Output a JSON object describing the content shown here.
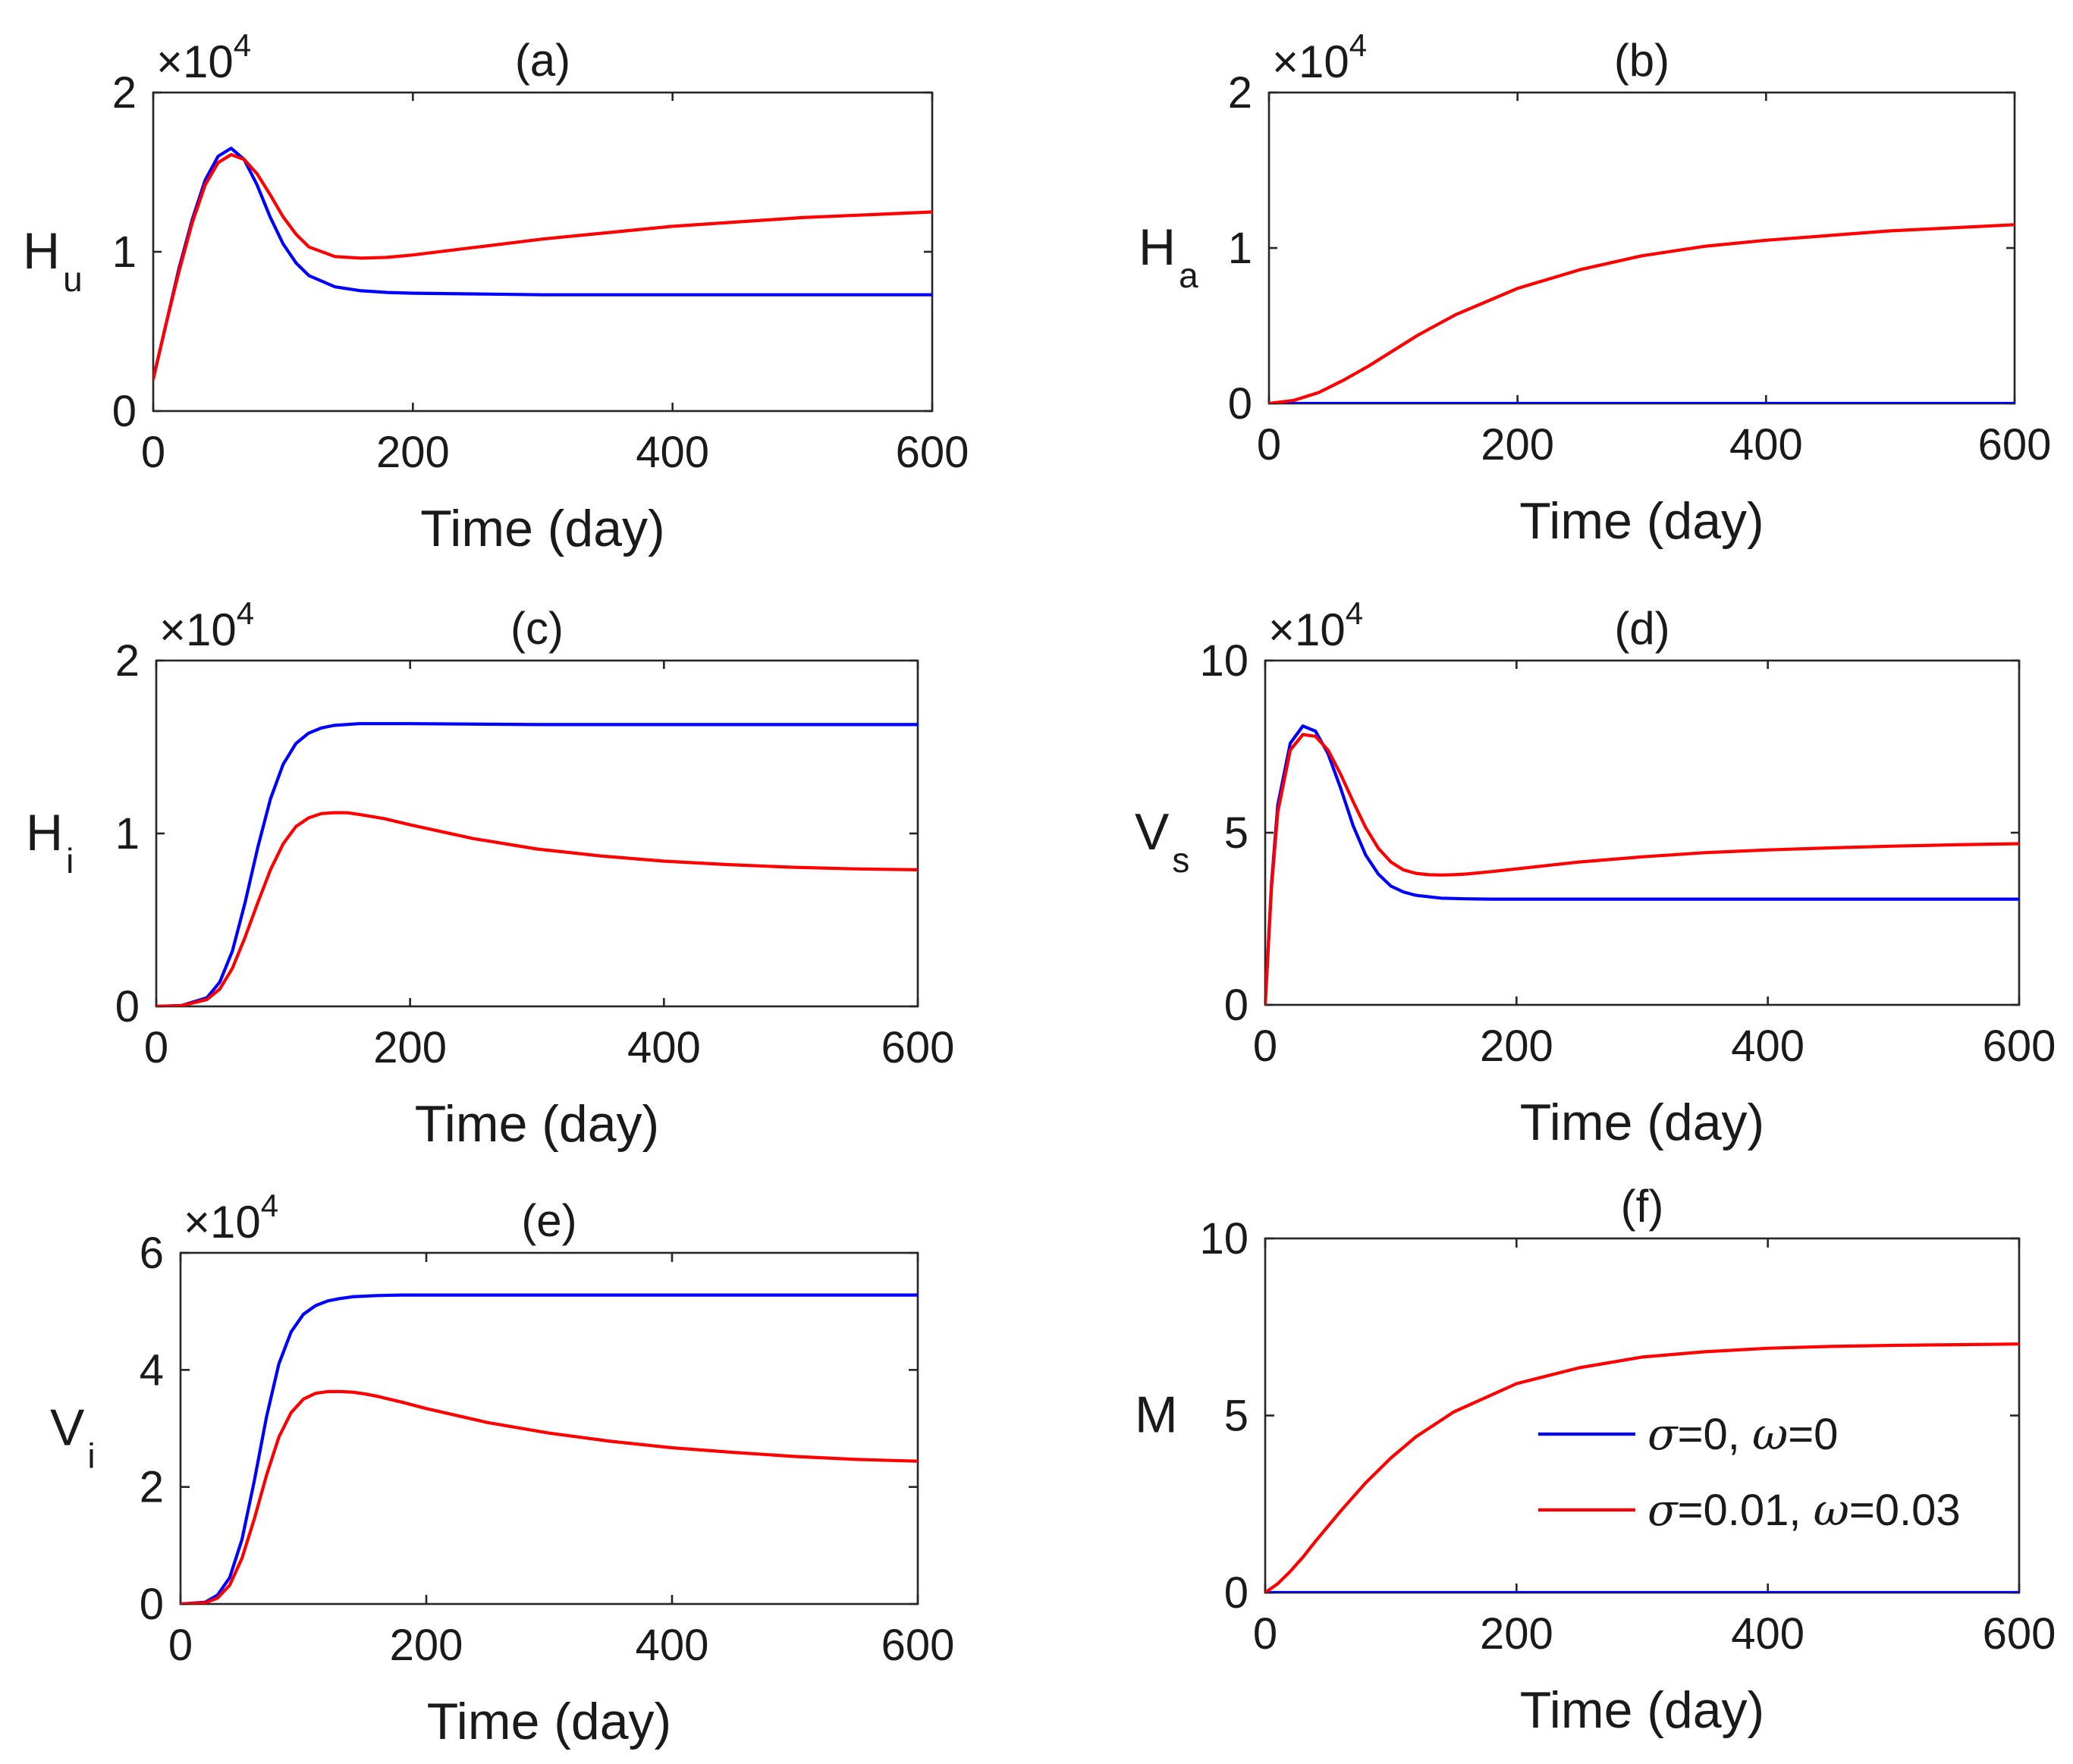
{
  "colors": {
    "series_blue": "#0000ff",
    "series_red": "#ff0000",
    "axes": "#262626"
  },
  "legend": {
    "entries": [
      {
        "series": "blue",
        "sym1": "σ",
        "text1": "=0, ",
        "sym2": "ω",
        "text2": "=0"
      },
      {
        "series": "red",
        "sym1": "σ",
        "text1": "=0.01, ",
        "sym2": "ω",
        "text2": "=0.03"
      }
    ]
  },
  "chart_data": [
    {
      "id": "a",
      "type": "line",
      "title": "(a)",
      "ylabel": "H",
      "ylabel_sub": "u",
      "xlabel": "Time (day)",
      "y_exponent": {
        "base": "×10",
        "power": "4"
      },
      "xlim": [
        0,
        600
      ],
      "ylim": [
        0,
        2
      ],
      "xticks": [
        0,
        200,
        400,
        600
      ],
      "xtick_labels": [
        "0",
        "200",
        "400",
        "600"
      ],
      "yticks": [
        0,
        1,
        2
      ],
      "ytick_labels": [
        "0",
        "1",
        "2"
      ],
      "series": [
        {
          "name": "σ=0, ω=0",
          "color": "blue",
          "x": [
            0,
            10,
            20,
            30,
            40,
            50,
            60,
            70,
            80,
            90,
            100,
            110,
            120,
            140,
            160,
            180,
            200,
            250,
            300,
            400,
            500,
            600
          ],
          "y": [
            0.2,
            0.55,
            0.9,
            1.2,
            1.45,
            1.6,
            1.65,
            1.58,
            1.42,
            1.22,
            1.05,
            0.93,
            0.85,
            0.78,
            0.755,
            0.745,
            0.74,
            0.735,
            0.73,
            0.73,
            0.73,
            0.73
          ]
        },
        {
          "name": "σ=0.01, ω=0.03",
          "color": "red",
          "x": [
            0,
            10,
            20,
            30,
            40,
            50,
            60,
            70,
            80,
            90,
            100,
            110,
            120,
            140,
            160,
            180,
            200,
            250,
            300,
            400,
            500,
            600
          ],
          "y": [
            0.2,
            0.55,
            0.88,
            1.18,
            1.42,
            1.56,
            1.61,
            1.58,
            1.49,
            1.36,
            1.22,
            1.11,
            1.03,
            0.97,
            0.96,
            0.965,
            0.98,
            1.03,
            1.08,
            1.16,
            1.215,
            1.25
          ]
        }
      ]
    },
    {
      "id": "b",
      "type": "line",
      "title": "(b)",
      "ylabel": "H",
      "ylabel_sub": "a",
      "xlabel": "Time (day)",
      "y_exponent": {
        "base": "×10",
        "power": "4"
      },
      "xlim": [
        0,
        600
      ],
      "ylim": [
        0,
        2
      ],
      "xticks": [
        0,
        200,
        400,
        600
      ],
      "xtick_labels": [
        "0",
        "200",
        "400",
        "600"
      ],
      "yticks": [
        0,
        1,
        2
      ],
      "ytick_labels": [
        "0",
        "1",
        "2"
      ],
      "series": [
        {
          "name": "σ=0, ω=0",
          "color": "blue",
          "x": [
            0,
            600
          ],
          "y": [
            0,
            0
          ]
        },
        {
          "name": "σ=0.01, ω=0.03",
          "color": "red",
          "x": [
            0,
            20,
            40,
            60,
            80,
            100,
            120,
            150,
            200,
            250,
            300,
            350,
            400,
            450,
            500,
            550,
            600
          ],
          "y": [
            0,
            0.02,
            0.07,
            0.15,
            0.24,
            0.34,
            0.44,
            0.57,
            0.74,
            0.86,
            0.95,
            1.01,
            1.05,
            1.08,
            1.11,
            1.13,
            1.15
          ]
        }
      ]
    },
    {
      "id": "c",
      "type": "line",
      "title": "(c)",
      "ylabel": "H",
      "ylabel_sub": "i",
      "xlabel": "Time (day)",
      "y_exponent": {
        "base": "×10",
        "power": "4"
      },
      "xlim": [
        0,
        600
      ],
      "ylim": [
        0,
        2
      ],
      "xticks": [
        0,
        200,
        400,
        600
      ],
      "xtick_labels": [
        "0",
        "200",
        "400",
        "600"
      ],
      "yticks": [
        0,
        1,
        2
      ],
      "ytick_labels": [
        "0",
        "1",
        "2"
      ],
      "series": [
        {
          "name": "σ=0, ω=0",
          "color": "blue",
          "x": [
            0,
            20,
            40,
            50,
            60,
            70,
            80,
            90,
            100,
            110,
            120,
            130,
            140,
            160,
            180,
            200,
            300,
            400,
            500,
            600
          ],
          "y": [
            0,
            0.005,
            0.05,
            0.14,
            0.32,
            0.6,
            0.92,
            1.2,
            1.4,
            1.52,
            1.58,
            1.61,
            1.625,
            1.635,
            1.635,
            1.635,
            1.63,
            1.63,
            1.63,
            1.63
          ]
        },
        {
          "name": "σ=0.01, ω=0.03",
          "color": "red",
          "x": [
            0,
            20,
            40,
            50,
            60,
            70,
            80,
            90,
            100,
            110,
            120,
            130,
            140,
            150,
            160,
            180,
            200,
            250,
            300,
            350,
            400,
            450,
            500,
            550,
            600
          ],
          "y": [
            0,
            0.004,
            0.04,
            0.1,
            0.22,
            0.4,
            0.6,
            0.79,
            0.94,
            1.04,
            1.09,
            1.115,
            1.12,
            1.12,
            1.11,
            1.085,
            1.05,
            0.97,
            0.91,
            0.87,
            0.84,
            0.82,
            0.805,
            0.795,
            0.79
          ]
        }
      ]
    },
    {
      "id": "d",
      "type": "line",
      "title": "(d)",
      "ylabel": "V",
      "ylabel_sub": "s",
      "xlabel": "Time (day)",
      "y_exponent": {
        "base": "×10",
        "power": "4"
      },
      "xlim": [
        0,
        600
      ],
      "ylim": [
        0,
        10
      ],
      "xticks": [
        0,
        200,
        400,
        600
      ],
      "xtick_labels": [
        "0",
        "200",
        "400",
        "600"
      ],
      "yticks": [
        0,
        5,
        10
      ],
      "ytick_labels": [
        "0",
        "5",
        "10"
      ],
      "series": [
        {
          "name": "σ=0, ω=0",
          "color": "blue",
          "x": [
            0,
            5,
            10,
            20,
            30,
            40,
            50,
            60,
            70,
            80,
            90,
            100,
            110,
            120,
            140,
            160,
            180,
            200,
            300,
            400,
            500,
            600
          ],
          "y": [
            0,
            3.5,
            5.8,
            7.6,
            8.1,
            7.95,
            7.3,
            6.3,
            5.2,
            4.35,
            3.8,
            3.45,
            3.28,
            3.18,
            3.1,
            3.08,
            3.07,
            3.07,
            3.07,
            3.07,
            3.07,
            3.07
          ]
        },
        {
          "name": "σ=0.01, ω=0.03",
          "color": "red",
          "x": [
            0,
            5,
            10,
            20,
            30,
            40,
            50,
            60,
            70,
            80,
            90,
            100,
            110,
            120,
            130,
            140,
            150,
            160,
            180,
            200,
            250,
            300,
            350,
            400,
            450,
            500,
            550,
            600
          ],
          "y": [
            0,
            3.4,
            5.6,
            7.4,
            7.85,
            7.8,
            7.4,
            6.7,
            5.9,
            5.15,
            4.55,
            4.15,
            3.92,
            3.82,
            3.78,
            3.77,
            3.78,
            3.8,
            3.87,
            3.95,
            4.15,
            4.3,
            4.42,
            4.5,
            4.56,
            4.61,
            4.65,
            4.68
          ]
        }
      ]
    },
    {
      "id": "e",
      "type": "line",
      "title": "(e)",
      "ylabel": "V",
      "ylabel_sub": "i",
      "xlabel": "Time (day)",
      "y_exponent": {
        "base": "×10",
        "power": "4"
      },
      "xlim": [
        0,
        600
      ],
      "ylim": [
        0,
        6
      ],
      "xticks": [
        0,
        200,
        400,
        600
      ],
      "xtick_labels": [
        "0",
        "200",
        "400",
        "600"
      ],
      "yticks": [
        0,
        2,
        4,
        6
      ],
      "ytick_labels": [
        "0",
        "2",
        "4",
        "6"
      ],
      "series": [
        {
          "name": "σ=0, ω=0",
          "color": "blue",
          "x": [
            0,
            20,
            30,
            40,
            50,
            60,
            70,
            80,
            90,
            100,
            110,
            120,
            130,
            140,
            160,
            180,
            200,
            300,
            400,
            500,
            600
          ],
          "y": [
            0,
            0.03,
            0.15,
            0.45,
            1.1,
            2.1,
            3.2,
            4.1,
            4.65,
            4.95,
            5.1,
            5.18,
            5.22,
            5.25,
            5.27,
            5.28,
            5.28,
            5.28,
            5.28,
            5.28,
            5.28
          ]
        },
        {
          "name": "σ=0.01, ω=0.03",
          "color": "red",
          "x": [
            0,
            20,
            30,
            40,
            50,
            60,
            70,
            80,
            90,
            100,
            110,
            120,
            130,
            140,
            150,
            160,
            180,
            200,
            250,
            300,
            350,
            400,
            450,
            500,
            550,
            600
          ],
          "y": [
            0,
            0.02,
            0.1,
            0.32,
            0.78,
            1.45,
            2.2,
            2.85,
            3.27,
            3.5,
            3.6,
            3.63,
            3.63,
            3.62,
            3.59,
            3.55,
            3.45,
            3.34,
            3.1,
            2.92,
            2.78,
            2.67,
            2.59,
            2.52,
            2.47,
            2.44
          ]
        }
      ]
    },
    {
      "id": "f",
      "type": "line",
      "title": "(f)",
      "ylabel": "M",
      "ylabel_sub": "",
      "xlabel": "Time (day)",
      "xlim": [
        0,
        600
      ],
      "ylim": [
        0,
        10
      ],
      "xticks": [
        0,
        200,
        400,
        600
      ],
      "xtick_labels": [
        "0",
        "200",
        "400",
        "600"
      ],
      "yticks": [
        0,
        5,
        10
      ],
      "ytick_labels": [
        "0",
        "5",
        "10"
      ],
      "legend_position": "lower-right",
      "series": [
        {
          "name": "σ=0, ω=0",
          "color": "blue",
          "x": [
            0,
            600
          ],
          "y": [
            0,
            0
          ]
        },
        {
          "name": "σ=0.01, ω=0.03",
          "color": "red",
          "x": [
            0,
            10,
            20,
            30,
            40,
            60,
            80,
            100,
            120,
            150,
            200,
            250,
            300,
            350,
            400,
            450,
            500,
            550,
            600
          ],
          "y": [
            0,
            0.25,
            0.6,
            1.0,
            1.45,
            2.3,
            3.1,
            3.8,
            4.4,
            5.1,
            5.9,
            6.35,
            6.65,
            6.8,
            6.9,
            6.95,
            6.98,
            7.0,
            7.02
          ]
        }
      ]
    }
  ]
}
